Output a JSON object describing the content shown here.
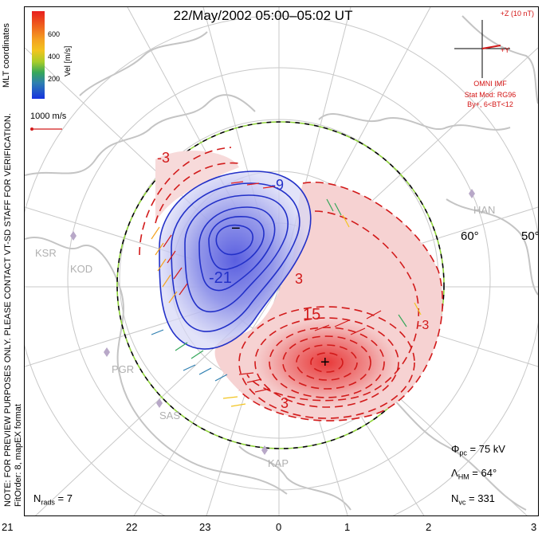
{
  "title": "22/May/2002 05:00–05:02 UT",
  "colorbar": {
    "label": "Vel [m/s]",
    "ticks": [
      "600",
      "400",
      "200"
    ],
    "colors": [
      "#e81f1f",
      "#f4a321",
      "#a7cd2a",
      "#36a75a",
      "#2e7fb1",
      "#1633e0"
    ]
  },
  "coordinates_label": "MLT coordinates",
  "note_text": "NOTE: FOR PREVIEW PURPOSES ONLY. PLEASE CONTACT VT-SD STAFF FOR VERIFICATION.",
  "fit_text": "FitOrder: 8, mapEX format",
  "scale_vector_label": "1000 m/s",
  "imf": {
    "z_label": "+Z (10 nT)",
    "y_label": "+Y",
    "source": "OMNI IMF",
    "stat_mod": "Stat Mod: RG96",
    "condition": "By+, 6<BT<12"
  },
  "stats": {
    "phi_pc": "75 kV",
    "lambda_hm": "64°",
    "n_vc": "331",
    "n_rads": "7"
  },
  "mlt_ticks": [
    "21",
    "22",
    "23",
    "0",
    "1",
    "2",
    "3"
  ],
  "latitude_labels": [
    "60°",
    "50°"
  ],
  "contour_labels": [
    "-3",
    "-9",
    "-21",
    "3",
    "15",
    "3",
    "-3"
  ],
  "extrema": {
    "min": "−",
    "max": "+"
  },
  "radar_sites": [
    "KSR",
    "KOD",
    "PGR",
    "SAS",
    "KAP",
    "HAN"
  ],
  "colors": {
    "negative_cell": "#6a6ee0",
    "positive_cell": "#e84545",
    "negative_line": "#2230c8",
    "positive_line": "#d21a1a",
    "grid": "#c8c8c8",
    "coast": "#c4c4c4",
    "hm_boundary_dash1": "#000000",
    "hm_boundary_dash2": "#8fd33a"
  }
}
